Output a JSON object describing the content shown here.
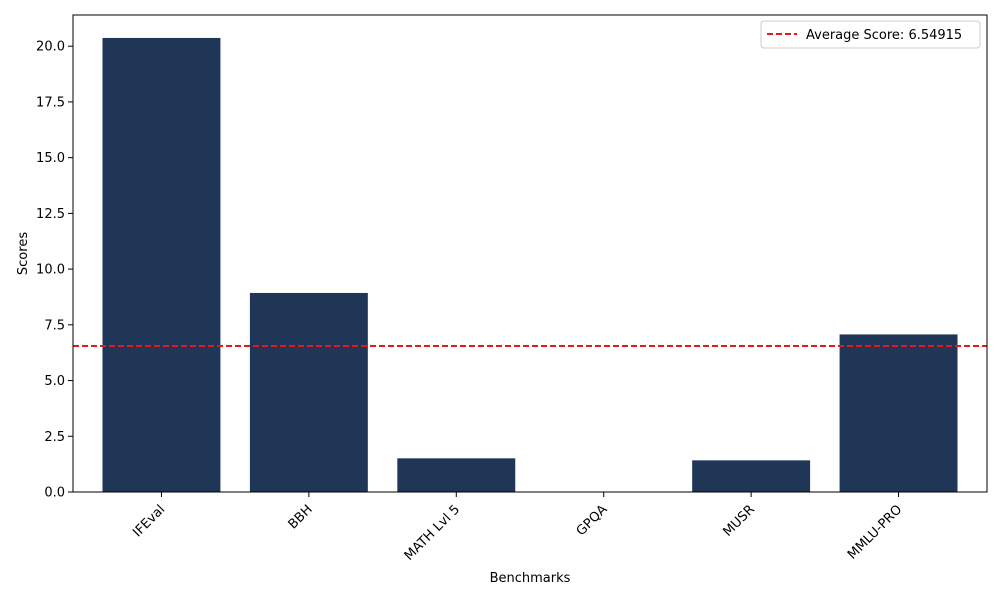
{
  "chart_data": {
    "type": "bar",
    "title": "",
    "xlabel": "Benchmarks",
    "ylabel": "Scores",
    "categories": [
      "IFEval",
      "BBH",
      "MATH Lvl 5",
      "GPQA",
      "MUSR",
      "MMLU-PRO"
    ],
    "values": [
      20.37,
      8.93,
      1.51,
      0.0,
      1.42,
      7.07
    ],
    "ylim": [
      0,
      21.4
    ],
    "yticks": [
      "0.0",
      "2.5",
      "5.0",
      "7.5",
      "10.0",
      "12.5",
      "15.0",
      "17.5",
      "20.0"
    ],
    "ytick_values": [
      0,
      2.5,
      5,
      7.5,
      10,
      12.5,
      15,
      17.5,
      20
    ],
    "bar_color": "#1f3657",
    "xtick_rotation_deg": 45,
    "reference_line": {
      "value": 6.54915,
      "label": "Average Score: 6.54915",
      "color": "#e31a1c",
      "style": "dashed"
    },
    "legend_placement": "top-right",
    "grid": false
  }
}
